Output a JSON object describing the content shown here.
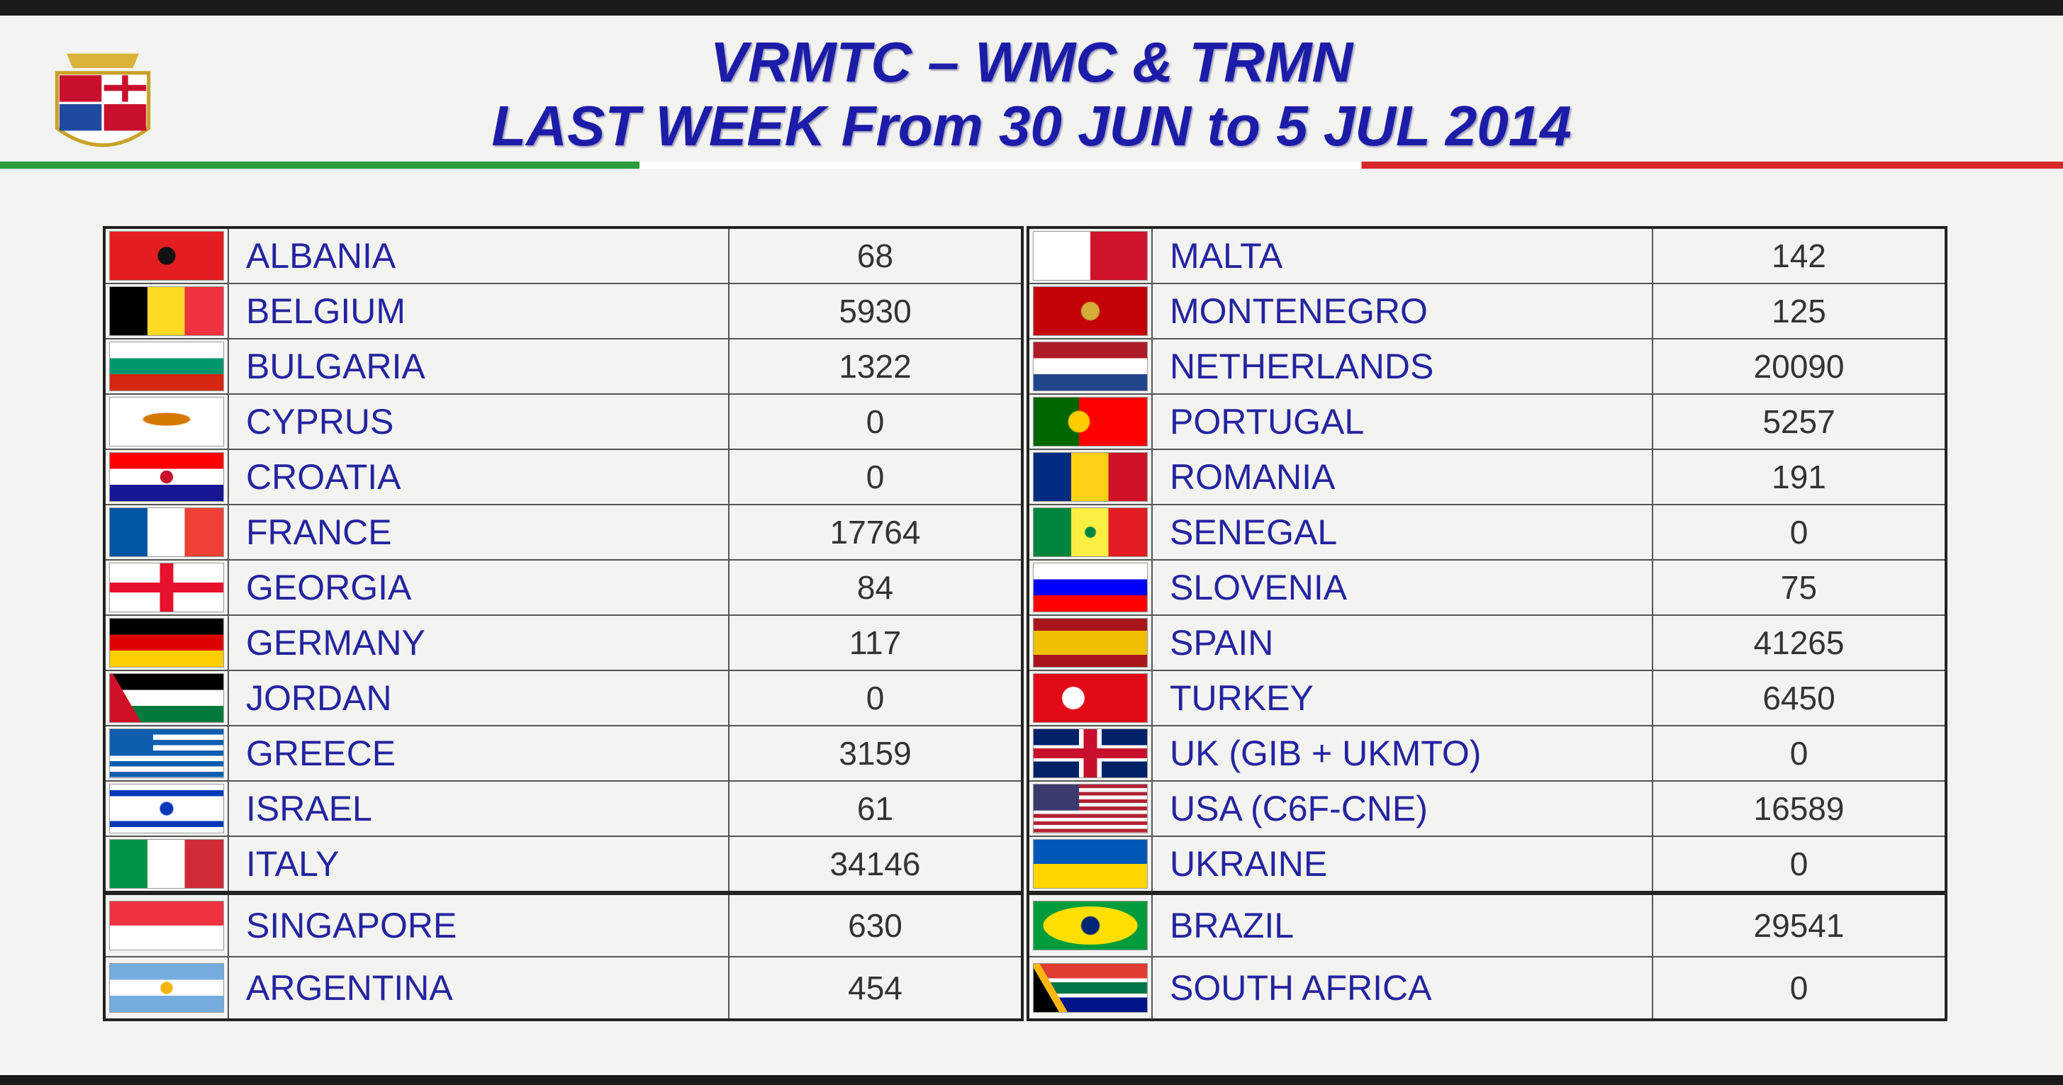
{
  "header": {
    "title_line1": "VRMTC – WMC & TRMN",
    "title_line2": "LAST WEEK From 30 JUN to 5 JUL 2014"
  },
  "table": {
    "left": {
      "rows": [
        [
          "ALBANIA",
          68
        ],
        [
          "BELGIUM",
          5930
        ],
        [
          "BULGARIA",
          1322
        ],
        [
          "CYPRUS",
          0
        ],
        [
          "CROATIA",
          0
        ],
        [
          "FRANCE",
          17764
        ],
        [
          "GEORGIA",
          84
        ],
        [
          "GERMANY",
          117
        ],
        [
          "JORDAN",
          0
        ],
        [
          "GREECE",
          3159
        ],
        [
          "ISRAEL",
          61
        ],
        [
          "ITALY",
          34146
        ],
        [
          "SINGAPORE",
          630
        ],
        [
          "ARGENTINA",
          454
        ]
      ]
    },
    "right": {
      "rows": [
        [
          "MALTA",
          142
        ],
        [
          "MONTENEGRO",
          125
        ],
        [
          "NETHERLANDS",
          20090
        ],
        [
          "PORTUGAL",
          5257
        ],
        [
          "ROMANIA",
          191
        ],
        [
          "SENEGAL",
          0
        ],
        [
          "SLOVENIA",
          75
        ],
        [
          "SPAIN",
          41265
        ],
        [
          "TURKEY",
          6450
        ],
        [
          "UK (GIB + UKMTO)",
          0
        ],
        [
          "USA (C6F-CNE)",
          16589
        ],
        [
          "UKRAINE",
          0
        ],
        [
          "BRAZIL",
          29541
        ],
        [
          "SOUTH AFRICA",
          0
        ]
      ]
    }
  }
}
